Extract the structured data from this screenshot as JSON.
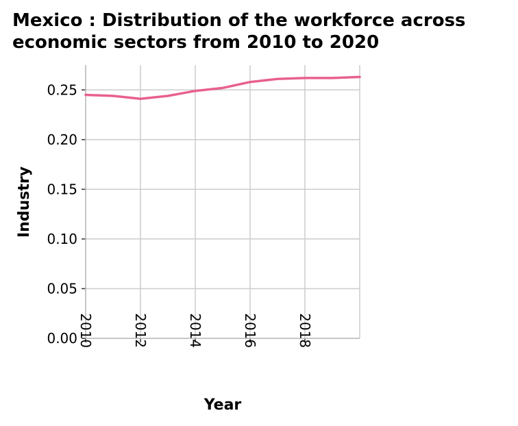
{
  "title_lines": [
    "Mexico : Distribution of the workforce across",
    "economic sectors from 2010 to 2020"
  ],
  "chart_data": {
    "type": "line",
    "title": "Mexico : Distribution of the workforce across economic sectors from 2010 to 2020",
    "xlabel": "Year",
    "ylabel": "Industry",
    "xlim": [
      2010,
      2020
    ],
    "ylim": [
      0,
      0.275
    ],
    "x_ticks": [
      2010,
      2012,
      2014,
      2016,
      2018
    ],
    "y_ticks": [
      0.0,
      0.05,
      0.1,
      0.15,
      0.2,
      0.25
    ],
    "x_tick_labels": [
      "2010",
      "2012",
      "2014",
      "2016",
      "2018"
    ],
    "y_tick_labels": [
      "0.00",
      "0.05",
      "0.10",
      "0.15",
      "0.20",
      "0.25"
    ],
    "grid": true,
    "series": [
      {
        "color": "#e8608f",
        "x": [
          2010,
          2011,
          2012,
          2013,
          2014,
          2015,
          2016,
          2017,
          2018,
          2019,
          2020
        ],
        "y": [
          0.245,
          0.244,
          0.241,
          0.244,
          0.249,
          0.252,
          0.258,
          0.261,
          0.262,
          0.262,
          0.263
        ]
      }
    ]
  },
  "colors": {
    "grid": "#cccccc",
    "axis": "#bbbbbb",
    "line": "#e8608f"
  }
}
